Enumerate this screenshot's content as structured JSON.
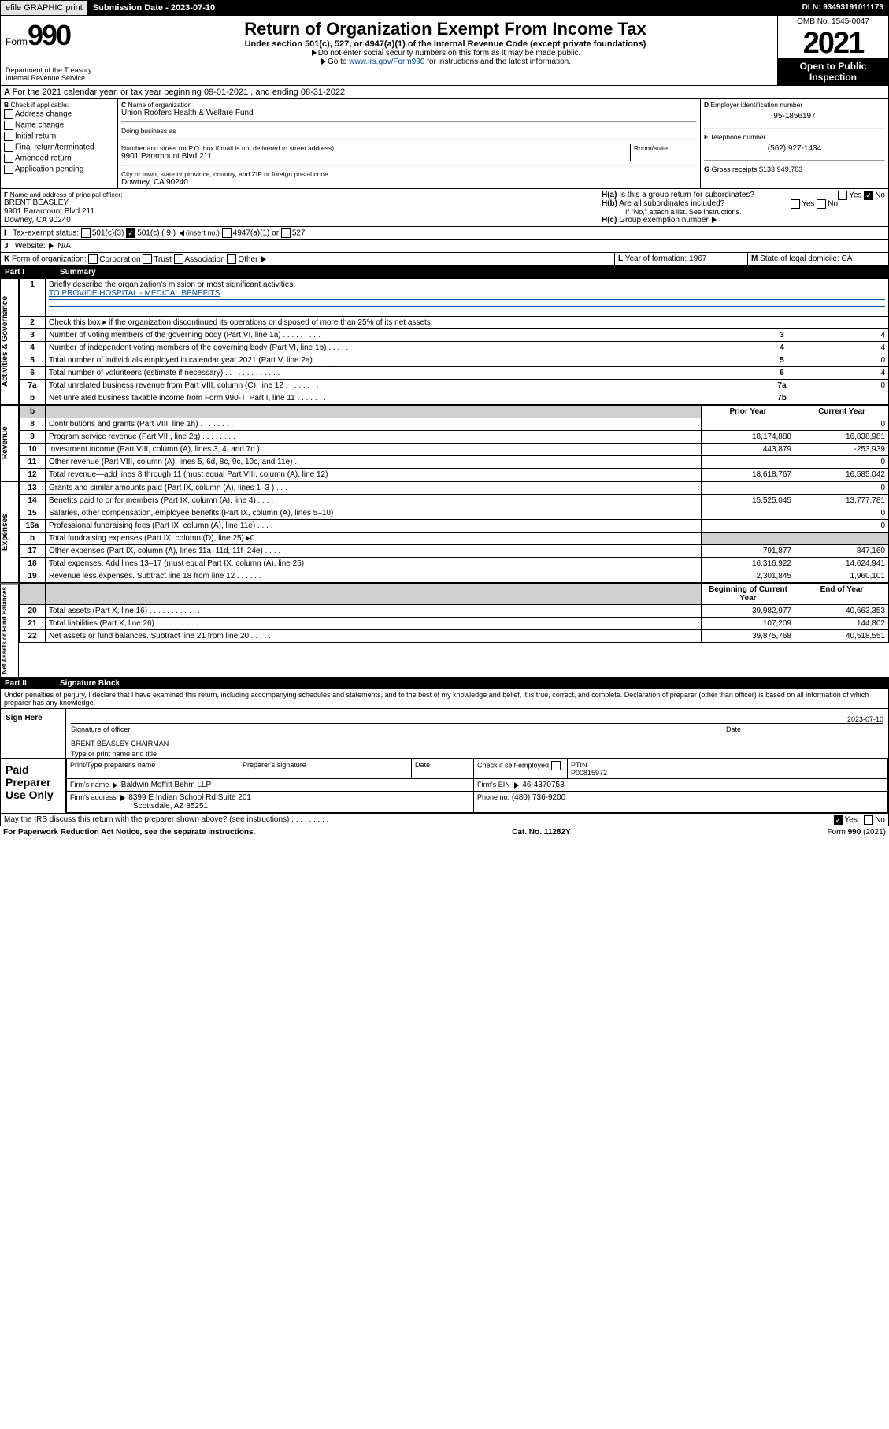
{
  "topbar": {
    "efile": "efile GRAPHIC print",
    "submission": "Submission Date - 2023-07-10",
    "dln": "DLN: 93493191011173"
  },
  "header": {
    "form_prefix": "Form",
    "form_no": "990",
    "dept": "Department of the Treasury",
    "irs": "Internal Revenue Service",
    "title": "Return of Organization Exempt From Income Tax",
    "sub": "Under section 501(c), 527, or 4947(a)(1) of the Internal Revenue Code (except private foundations)",
    "note1": "Do not enter social security numbers on this form as it may be made public.",
    "note2_pre": "Go to ",
    "note2_link": "www.irs.gov/Form990",
    "note2_post": " for instructions and the latest information.",
    "omb": "OMB No. 1545-0047",
    "year": "2021",
    "opi": "Open to Public Inspection"
  },
  "A": {
    "text": "For the 2021 calendar year, or tax year beginning 09-01-2021   , and ending 08-31-2022"
  },
  "B": {
    "label": "Check if applicable:",
    "items": [
      "Address change",
      "Name change",
      "Initial return",
      "Final return/terminated",
      "Amended return",
      "Application pending"
    ]
  },
  "C": {
    "name_lbl": "Name of organization",
    "name": "Union Roofers Health & Welfare Fund",
    "dba_lbl": "Doing business as",
    "dba": "",
    "addr_lbl": "Number and street (or P.O. box if mail is not delivered to street address)",
    "room_lbl": "Room/suite",
    "addr": "9901 Paramount Blvd 211",
    "city_lbl": "City or town, state or province, country, and ZIP or foreign postal code",
    "city": "Downey, CA  90240"
  },
  "D": {
    "lbl": "Employer identification number",
    "val": "95-1856197"
  },
  "E": {
    "lbl": "Telephone number",
    "val": "(562) 927-1434"
  },
  "G": {
    "lbl": "Gross receipts $",
    "val": "133,949,763"
  },
  "F": {
    "lbl": "Name and address of principal officer:",
    "name": "BRENT BEASLEY",
    "addr": "9901 Paramount Blvd 211",
    "city": "Downey, CA  90240"
  },
  "H": {
    "a": "Is this a group return for subordinates?",
    "a_yes": "Yes",
    "a_no": "No",
    "b": "Are all subordinates included?",
    "b_note": "If \"No,\" attach a list. See instructions.",
    "c": "Group exemption number"
  },
  "I": {
    "lbl": "Tax-exempt status:",
    "o1": "501(c)(3)",
    "o2": "501(c) ( 9 )",
    "o2_note": "(insert no.)",
    "o3": "4947(a)(1) or",
    "o4": "527"
  },
  "J": {
    "lbl": "Website:",
    "val": "N/A"
  },
  "K": {
    "lbl": "Form of organization:",
    "opts": [
      "Corporation",
      "Trust",
      "Association",
      "Other"
    ]
  },
  "L": {
    "lbl": "Year of formation:",
    "val": "1967"
  },
  "M": {
    "lbl": "State of legal domicile:",
    "val": "CA"
  },
  "partI": {
    "num": "Part I",
    "title": "Summary"
  },
  "summary": {
    "q1": "Briefly describe the organization's mission or most significant activities:",
    "q1v": "TO PROVIDE HOSPITAL - MEDICAL BENEFITS",
    "q2": "Check this box ▸    if the organization discontinued its operations or disposed of more than 25% of its net assets.",
    "rows_gov": [
      {
        "n": "3",
        "t": "Number of voting members of the governing body (Part VI, line 1a)   .   .   .   .   .   .   .   .   .",
        "b": "3",
        "v": "4"
      },
      {
        "n": "4",
        "t": "Number of independent voting members of the governing body (Part VI, line 1b)   .   .   .   .   .",
        "b": "4",
        "v": "4"
      },
      {
        "n": "5",
        "t": "Total number of individuals employed in calendar year 2021 (Part V, line 2a)   .   .   .   .   .   .",
        "b": "5",
        "v": "0"
      },
      {
        "n": "6",
        "t": "Total number of volunteers (estimate if necessary)   .   .   .   .   .   .   .   .   .   .   .   .   .",
        "b": "6",
        "v": "4"
      },
      {
        "n": "7a",
        "t": "Total unrelated business revenue from Part VIII, column (C), line 12   .   .   .   .   .   .   .   .",
        "b": "7a",
        "v": "0"
      },
      {
        "n": "b",
        "t": "Net unrelated business taxable income from Form 990-T, Part I, line 11   .   .   .   .   .   .   .",
        "b": "7b",
        "v": ""
      }
    ],
    "col_prior": "Prior Year",
    "col_curr": "Current Year",
    "rows_rev": [
      {
        "n": "8",
        "t": "Contributions and grants (Part VIII, line 1h)   .   .   .   .   .   .   .   .",
        "p": "",
        "c": "0"
      },
      {
        "n": "9",
        "t": "Program service revenue (Part VIII, line 2g)   .   .   .   .   .   .   .   .",
        "p": "18,174,888",
        "c": "16,838,981"
      },
      {
        "n": "10",
        "t": "Investment income (Part VIII, column (A), lines 3, 4, and 7d )   .   .   .   .",
        "p": "443,879",
        "c": "-253,939"
      },
      {
        "n": "11",
        "t": "Other revenue (Part VIII, column (A), lines 5, 6d, 8c, 9c, 10c, and 11e)   .",
        "p": "",
        "c": "0"
      },
      {
        "n": "12",
        "t": "Total revenue—add lines 8 through 11 (must equal Part VIII, column (A), line 12)",
        "p": "18,618,767",
        "c": "16,585,042"
      }
    ],
    "rows_exp": [
      {
        "n": "13",
        "t": "Grants and similar amounts paid (Part IX, column (A), lines 1–3 )   .   .   .",
        "p": "",
        "c": "0"
      },
      {
        "n": "14",
        "t": "Benefits paid to or for members (Part IX, column (A), line 4)   .   .   .   .",
        "p": "15,525,045",
        "c": "13,777,781"
      },
      {
        "n": "15",
        "t": "Salaries, other compensation, employee benefits (Part IX, column (A), lines 5–10)",
        "p": "",
        "c": "0"
      },
      {
        "n": "16a",
        "t": "Professional fundraising fees (Part IX, column (A), line 11e)   .   .   .   .",
        "p": "",
        "c": "0"
      },
      {
        "n": "b",
        "t": "Total fundraising expenses (Part IX, column (D), line 25) ▸0",
        "p": "",
        "c": "",
        "shade": true
      },
      {
        "n": "17",
        "t": "Other expenses (Part IX, column (A), lines 11a–11d, 11f–24e)   .   .   .   .",
        "p": "791,877",
        "c": "847,160"
      },
      {
        "n": "18",
        "t": "Total expenses. Add lines 13–17 (must equal Part IX, column (A), line 25)",
        "p": "16,316,922",
        "c": "14,624,941"
      },
      {
        "n": "19",
        "t": "Revenue less expenses. Subtract line 18 from line 12   .   .   .   .   .   .",
        "p": "2,301,845",
        "c": "1,960,101"
      }
    ],
    "col_beg": "Beginning of Current Year",
    "col_end": "End of Year",
    "rows_na": [
      {
        "n": "20",
        "t": "Total assets (Part X, line 16)   .   .   .   .   .   .   .   .   .   .   .   .",
        "p": "39,982,977",
        "c": "40,663,353"
      },
      {
        "n": "21",
        "t": "Total liabilities (Part X, line 26)   .   .   .   .   .   .   .   .   .   .   .",
        "p": "107,209",
        "c": "144,802"
      },
      {
        "n": "22",
        "t": "Net assets or fund balances. Subtract line 21 from line 20   .   .   .   .   .",
        "p": "39,875,768",
        "c": "40,518,551"
      }
    ]
  },
  "partII": {
    "num": "Part II",
    "title": "Signature Block"
  },
  "perjury": "Under penalties of perjury, I declare that I have examined this return, including accompanying schedules and statements, and to the best of my knowledge and belief, it is true, correct, and complete. Declaration of preparer (other than officer) is based on all information of which preparer has any knowledge.",
  "sign": {
    "here": "Sign Here",
    "sig_lbl": "Signature of officer",
    "date_lbl": "Date",
    "date": "2023-07-10",
    "name": "BRENT BEASLEY CHAIRMAN",
    "name_lbl": "Type or print name and title"
  },
  "paid": {
    "here": "Paid Preparer Use Only",
    "h1": "Print/Type preparer's name",
    "h2": "Preparer's signature",
    "h3": "Date",
    "h4": "Check    if self-employed",
    "h5": "PTIN",
    "ptin": "P00815972",
    "firm_lbl": "Firm's name",
    "firm": "Baldwin Moffitt Behm LLP",
    "ein_lbl": "Firm's EIN",
    "ein": "46-4370753",
    "addr_lbl": "Firm's address",
    "addr": "8399 E Indian School Rd Suite 201",
    "city": "Scottsdale, AZ  85251",
    "phone_lbl": "Phone no.",
    "phone": "(480) 736-9200"
  },
  "discuss": {
    "q": "May the IRS discuss this return with the preparer shown above? (see instructions)   .   .   .   .   .   .   .   .   .   .",
    "yes": "Yes",
    "no": "No"
  },
  "footer": {
    "l": "For Paperwork Reduction Act Notice, see the separate instructions.",
    "m": "Cat. No. 11282Y",
    "r": "Form 990 (2021)"
  },
  "sidelabels": {
    "gov": "Activities & Governance",
    "rev": "Revenue",
    "exp": "Expenses",
    "na": "Net Assets or Fund Balances"
  }
}
